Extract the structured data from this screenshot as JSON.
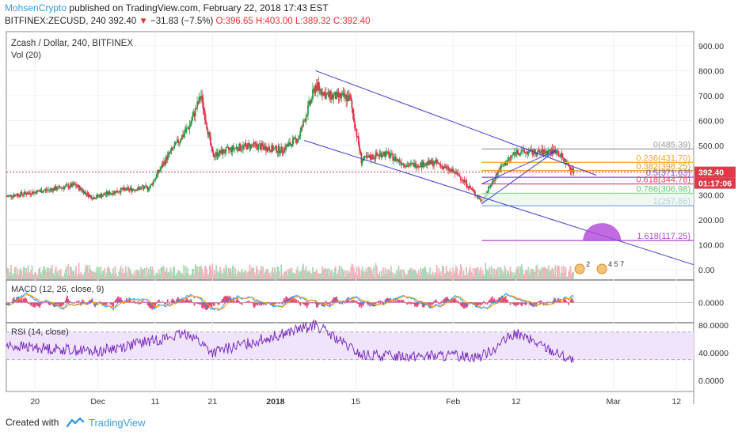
{
  "header": {
    "author": "MohsenCrypto",
    "published": "published on TradingView.com, February 22, 2018 17:43 EST",
    "symbol": "BITFINEX:ZECUSD, 240",
    "last": "392.40",
    "change_symbol": "▼",
    "change": "−31.83 (−7.5%)",
    "ohlc": "O:396.65 H:403.00 L:389.32 C:392.40"
  },
  "footer": {
    "created_with": "Created with",
    "brand": "TradingView"
  },
  "colors": {
    "up": "#2b9b47",
    "down": "#e2324a",
    "channel": "#3d3dd1",
    "fib_zero": "#9e9e9e",
    "fib_236": "#f4a62a",
    "fib_382": "#e89a2c",
    "fib_5": "#7a55c9",
    "fib_618": "#e0405a",
    "fib_786": "#5fc86a",
    "fib_1": "#2f70d9",
    "fib_1618": "#b146d8",
    "rsi_band": "#efe4fb",
    "macd_line": "#2196f3",
    "signal_line": "#ff9800",
    "rsi_line": "#7b2fbf",
    "price_label": "#e0394a"
  },
  "chart_data": [
    {
      "type": "candlestick",
      "title": "Zcash / Dollar, 240, BITFINEX",
      "volume_label": "Vol (20)",
      "x_ticks": [
        "20",
        "Dec",
        "11",
        "21",
        "2018",
        "15",
        "Feb",
        "12",
        "Mar",
        "12"
      ],
      "x_tick_dates": [
        "2017-11-20",
        "2017-12-01",
        "2017-12-11",
        "2017-12-21",
        "2018-01-01",
        "2018-01-15",
        "2018-02-01",
        "2018-02-12",
        "2018-03-01",
        "2018-03-12"
      ],
      "y_ticks": [
        "900.00",
        "800.00",
        "700.00",
        "600.00",
        "500.00",
        "400.00",
        "300.00",
        "200.00",
        "100.00",
        "0.00"
      ],
      "ylim": [
        -20,
        950
      ],
      "approx_close_path": [
        {
          "date": "2017-11-15",
          "close": 295
        },
        {
          "date": "2017-11-22",
          "close": 320
        },
        {
          "date": "2017-11-27",
          "close": 340
        },
        {
          "date": "2017-11-30",
          "close": 290
        },
        {
          "date": "2017-12-05",
          "close": 320
        },
        {
          "date": "2017-12-10",
          "close": 330
        },
        {
          "date": "2017-12-13",
          "close": 450
        },
        {
          "date": "2017-12-17",
          "close": 580
        },
        {
          "date": "2017-12-19",
          "close": 700
        },
        {
          "date": "2017-12-21",
          "close": 460
        },
        {
          "date": "2017-12-25",
          "close": 490
        },
        {
          "date": "2017-12-28",
          "close": 500
        },
        {
          "date": "2018-01-02",
          "close": 480
        },
        {
          "date": "2018-01-05",
          "close": 530
        },
        {
          "date": "2018-01-08",
          "close": 740
        },
        {
          "date": "2018-01-10",
          "close": 700
        },
        {
          "date": "2018-01-14",
          "close": 690
        },
        {
          "date": "2018-01-16",
          "close": 440
        },
        {
          "date": "2018-01-20",
          "close": 470
        },
        {
          "date": "2018-01-24",
          "close": 420
        },
        {
          "date": "2018-01-29",
          "close": 430
        },
        {
          "date": "2018-02-02",
          "close": 380
        },
        {
          "date": "2018-02-06",
          "close": 275
        },
        {
          "date": "2018-02-09",
          "close": 400
        },
        {
          "date": "2018-02-12",
          "close": 475
        },
        {
          "date": "2018-02-16",
          "close": 470
        },
        {
          "date": "2018-02-19",
          "close": 480
        },
        {
          "date": "2018-02-22",
          "close": 392
        }
      ],
      "fib_levels": [
        {
          "ratio": "0",
          "label": "0(485.39)",
          "value": 485.39
        },
        {
          "ratio": "0.236",
          "label": "0.236(431.70)",
          "value": 431.7
        },
        {
          "ratio": "0.382",
          "label": "0.382(398.25)",
          "value": 398.25
        },
        {
          "ratio": "0.5",
          "label": "0.5(371.63)",
          "value": 371.63
        },
        {
          "ratio": "0.618",
          "label": "0.618(344.78)",
          "value": 344.78
        },
        {
          "ratio": "0.786",
          "label": "0.786(306.98)",
          "value": 306.98
        },
        {
          "ratio": "1",
          "label": "1(257.86)",
          "value": 257.86
        },
        {
          "ratio": "1.618",
          "label": "1.618(117.25)",
          "value": 117.25
        }
      ],
      "channel": {
        "upper": [
          {
            "date": "2018-01-08",
            "value": 800
          },
          {
            "date": "2018-02-26",
            "value": 380
          }
        ],
        "lower": [
          {
            "date": "2018-01-06",
            "value": 520
          },
          {
            "date": "2018-03-15",
            "value": 20
          }
        ]
      },
      "price_labels": [
        "392.40",
        "01:17:06"
      ],
      "event_badges": [
        "2",
        "4 5 7"
      ]
    },
    {
      "type": "line",
      "title": "MACD (12, 26, close, 9)",
      "series": [
        {
          "name": "MACD",
          "values": "oscillating around 0"
        },
        {
          "name": "Signal",
          "values": "oscillating around 0"
        }
      ],
      "y_ticks": [
        "0.0000"
      ]
    },
    {
      "type": "line",
      "title": "RSI (14, close)",
      "y_ticks": [
        "80.0000",
        "40.0000",
        "0.0000"
      ],
      "ylim": [
        -15,
        100
      ],
      "band": [
        30,
        70
      ],
      "approx_path": [
        {
          "date": "2017-11-15",
          "value": 50
        },
        {
          "date": "2017-12-01",
          "value": 42
        },
        {
          "date": "2017-12-17",
          "value": 68
        },
        {
          "date": "2017-12-21",
          "value": 40
        },
        {
          "date": "2018-01-08",
          "value": 80
        },
        {
          "date": "2018-01-16",
          "value": 36
        },
        {
          "date": "2018-02-06",
          "value": 35
        },
        {
          "date": "2018-02-12",
          "value": 68
        },
        {
          "date": "2018-02-22",
          "value": 28
        }
      ]
    }
  ]
}
